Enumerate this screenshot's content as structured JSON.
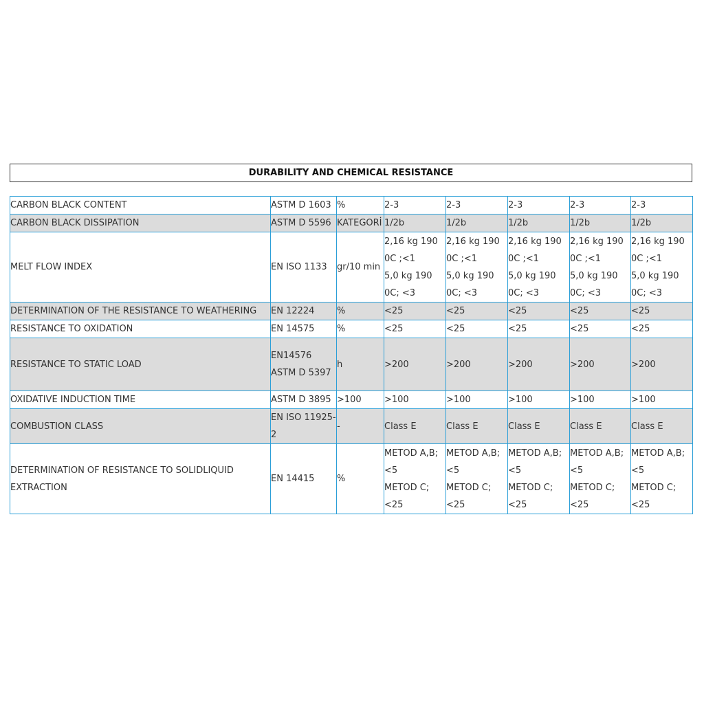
{
  "header": {
    "title": "DURABILITY AND CHEMICAL RESISTANCE"
  },
  "table": {
    "rows": [
      [
        "CARBON BLACK CONTENT",
        "ASTM D 1603",
        "%",
        "2-3",
        "2-3",
        "2-3",
        "2-3",
        "2-3"
      ],
      [
        "CARBON BLACK DISSIPATION",
        "ASTM D 5596",
        "KATEGORİ",
        "1/2b",
        "1/2b",
        "1/2b",
        "1/2b",
        "1/2b"
      ],
      [
        "MELT FLOW INDEX",
        "EN ISO 1133",
        "gr/10 min",
        [
          "2,16 kg 190 0C ;<1",
          "5,0 kg 190 0C; <3"
        ],
        [
          "2,16 kg 190 0C ;<1",
          "5,0 kg 190 0C; <3"
        ],
        [
          "2,16 kg 190 0C ;<1",
          "5,0 kg 190 0C; <3"
        ],
        [
          "2,16 kg 190 0C ;<1",
          "5,0 kg 190 0C; <3"
        ],
        [
          "2,16 kg 190 0C ;<1",
          "5,0 kg 190 0C; <3"
        ]
      ],
      [
        "DETERMINATION OF THE RESISTANCE TO WEATHERING",
        "EN 12224",
        "%",
        "<25",
        "<25",
        "<25",
        "<25",
        "<25"
      ],
      [
        "RESISTANCE TO OXIDATION",
        "EN 14575",
        "%",
        "<25",
        "<25",
        "<25",
        "<25",
        "<25"
      ],
      [
        "RESISTANCE TO STATIC LOAD",
        "EN14576 ASTM D 5397",
        "h",
        ">200",
        ">200",
        ">200",
        ">200",
        ">200"
      ],
      [
        "OXIDATIVE INDUCTION TIME",
        "ASTM D 3895",
        ">100",
        ">100",
        ">100",
        ">100",
        ">100",
        ">100"
      ],
      [
        "COMBUSTION CLASS",
        "EN ISO 11925-2",
        "-",
        "Class E",
        "Class E",
        "Class E",
        "Class E",
        "Class E"
      ],
      [
        "DETERMINATION OF RESISTANCE TO SOLIDLIQUID EXTRACTION",
        "EN 14415",
        "%",
        [
          "METOD A,B; <5",
          "METOD C; <25"
        ],
        [
          "METOD A,B; <5",
          "METOD C; <25"
        ],
        [
          "METOD A,B; <5",
          "METOD C; <25"
        ],
        [
          "METOD A,B; <5",
          "METOD C; <25"
        ],
        [
          "METOD A,B; <5",
          "METOD C; <25"
        ]
      ]
    ]
  }
}
